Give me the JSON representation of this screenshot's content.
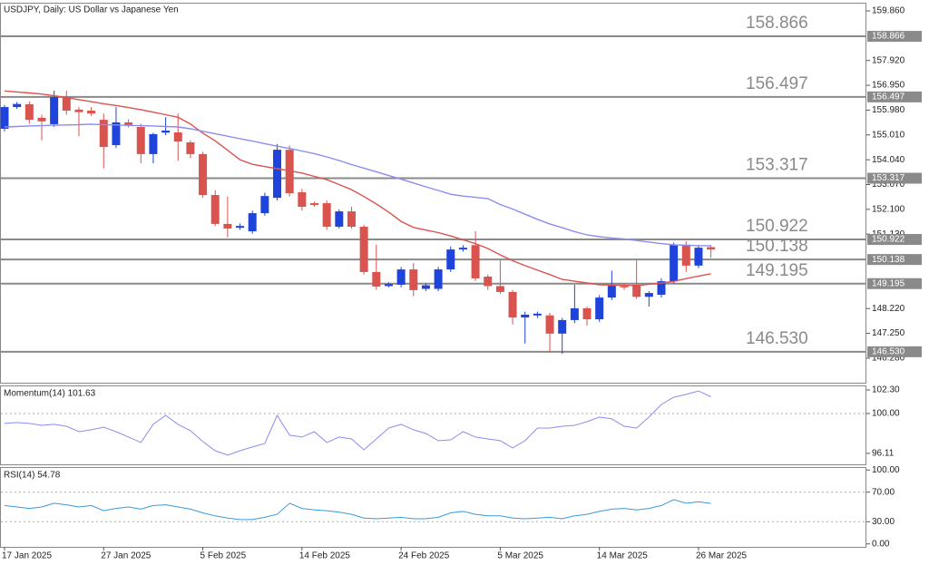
{
  "chart_data": {
    "type": "candlestick",
    "title": "USDJPY, Daily:  US Dollar vs Japanese Yen",
    "categories": [
      "17 Jan 2025",
      null,
      null,
      null,
      null,
      null,
      null,
      null,
      "27 Jan 2025",
      null,
      null,
      null,
      null,
      null,
      null,
      null,
      "5 Feb 2025",
      null,
      null,
      null,
      null,
      null,
      null,
      null,
      "14 Feb 2025",
      null,
      null,
      null,
      null,
      null,
      null,
      null,
      "24 Feb 2025",
      null,
      null,
      null,
      null,
      null,
      null,
      null,
      "5 Mar 2025",
      null,
      null,
      null,
      null,
      null,
      null,
      null,
      "14 Mar 2025",
      null,
      null,
      null,
      null,
      null,
      null,
      null,
      "26 Mar 2025",
      null
    ],
    "up_color": "#1f44dc",
    "down_color": "#d9534f",
    "candles": {
      "open": [
        155.25,
        156.1,
        156.21,
        155.68,
        155.43,
        156.49,
        156.0,
        155.96,
        155.6,
        154.61,
        155.5,
        155.32,
        154.26,
        155.1,
        155.11,
        154.72,
        154.26,
        152.66,
        151.53,
        151.38,
        151.24,
        151.95,
        152.55,
        154.43,
        152.77,
        152.34,
        152.34,
        151.42,
        152.02,
        151.42,
        149.65,
        149.1,
        149.15,
        149.75,
        148.99,
        148.99,
        149.75,
        150.53,
        150.7,
        149.47,
        149.1,
        148.87,
        147.87,
        147.95,
        147.95,
        147.24,
        147.77,
        148.23,
        147.8,
        148.65,
        149.1,
        149.15,
        148.68,
        148.76,
        149.29,
        150.71,
        149.9,
        150.62
      ],
      "high": [
        156.18,
        156.3,
        156.32,
        155.8,
        156.74,
        156.74,
        156.1,
        156.1,
        155.85,
        156.1,
        155.62,
        155.45,
        155.1,
        155.7,
        155.85,
        154.8,
        154.35,
        152.85,
        152.6,
        151.55,
        152.05,
        152.75,
        154.65,
        154.6,
        152.9,
        152.4,
        152.45,
        152.1,
        152.2,
        151.5,
        150.72,
        149.25,
        149.85,
        150.0,
        149.2,
        149.85,
        150.65,
        150.7,
        151.25,
        149.55,
        150.1,
        148.95,
        148.1,
        148.1,
        148.05,
        147.85,
        149.15,
        148.3,
        148.75,
        149.7,
        149.2,
        150.1,
        148.9,
        149.4,
        150.8,
        150.85,
        150.7,
        150.7
      ],
      "low": [
        155.15,
        156.02,
        155.45,
        154.8,
        155.32,
        155.8,
        154.96,
        155.75,
        153.7,
        154.5,
        155.3,
        153.9,
        153.9,
        155.0,
        154.0,
        154.1,
        152.55,
        151.45,
        151.0,
        151.3,
        151.15,
        151.85,
        152.45,
        152.6,
        152.05,
        152.2,
        151.3,
        151.35,
        151.35,
        149.55,
        148.95,
        149.05,
        149.05,
        148.7,
        148.9,
        148.9,
        149.65,
        150.45,
        149.3,
        148.95,
        148.8,
        147.6,
        146.85,
        147.85,
        146.5,
        146.45,
        147.65,
        147.55,
        147.7,
        148.55,
        148.95,
        148.6,
        148.3,
        148.65,
        149.2,
        149.65,
        149.8,
        150.2
      ],
      "close": [
        156.1,
        156.22,
        155.6,
        155.54,
        156.49,
        155.96,
        155.9,
        155.85,
        154.54,
        155.5,
        155.4,
        154.26,
        155.04,
        155.18,
        154.75,
        154.26,
        152.66,
        151.53,
        151.35,
        151.45,
        151.95,
        152.62,
        154.43,
        152.73,
        152.2,
        152.27,
        151.42,
        152.02,
        151.42,
        149.65,
        149.08,
        149.18,
        149.75,
        148.94,
        149.13,
        149.75,
        150.53,
        150.6,
        149.4,
        149.1,
        148.87,
        147.87,
        147.98,
        148.02,
        147.24,
        147.77,
        148.23,
        147.8,
        148.65,
        149.11,
        149.05,
        148.68,
        148.83,
        149.29,
        150.71,
        149.9,
        150.6,
        150.53
      ]
    },
    "lines": [
      {
        "color": "#d9534f",
        "values": [
          156.73,
          156.69,
          156.65,
          156.61,
          156.54,
          156.47,
          156.39,
          156.31,
          156.23,
          156.16,
          156.08,
          156.0,
          155.9,
          155.8,
          155.7,
          155.44,
          155.08,
          154.78,
          154.41,
          154.04,
          153.86,
          153.77,
          153.69,
          153.61,
          153.52,
          153.39,
          153.26,
          153.07,
          152.87,
          152.6,
          152.31,
          151.99,
          151.63,
          151.39,
          151.29,
          151.19,
          151.06,
          150.91,
          150.76,
          150.57,
          150.32,
          150.09,
          149.9,
          149.72,
          149.55,
          149.36,
          149.29,
          149.22,
          149.15,
          149.14,
          149.13,
          149.12,
          149.17,
          149.22,
          149.28,
          149.39,
          149.49,
          149.58
        ]
      },
      {
        "color": "#8c8cf0",
        "values": [
          155.32,
          155.34,
          155.36,
          155.37,
          155.39,
          155.4,
          155.41,
          155.43,
          155.41,
          155.4,
          155.38,
          155.37,
          155.36,
          155.34,
          155.32,
          155.25,
          155.15,
          155.06,
          154.96,
          154.86,
          154.77,
          154.67,
          154.57,
          154.48,
          154.38,
          154.28,
          154.15,
          154.01,
          153.85,
          153.71,
          153.57,
          153.42,
          153.28,
          153.13,
          152.98,
          152.84,
          152.69,
          152.62,
          152.57,
          152.52,
          152.29,
          152.11,
          151.91,
          151.71,
          151.53,
          151.38,
          151.23,
          151.1,
          151.03,
          150.98,
          150.94,
          150.88,
          150.82,
          150.76,
          150.71,
          150.7,
          150.68,
          150.68
        ]
      }
    ],
    "levels": [
      158.866,
      156.497,
      153.317,
      150.922,
      150.138,
      149.195,
      {
        "value": 146.53,
        "label": "146.530"
      }
    ],
    "level_color": "#8a8a8a",
    "ylim": [
      145.32,
      160.18
    ],
    "yticks": [
      {
        "value": 159.86,
        "label": "159.860"
      },
      {
        "value": 157.92,
        "label": "157.920"
      },
      {
        "value": 156.95,
        "label": "156.950"
      },
      {
        "value": 155.98,
        "label": "155.980"
      },
      {
        "value": 155.01,
        "label": "155.010"
      },
      {
        "value": 154.04,
        "label": "154.040"
      },
      {
        "value": 153.07,
        "label": "153.070"
      },
      {
        "value": 152.1,
        "label": "152.100"
      },
      {
        "value": 151.13,
        "label": "151.130"
      },
      {
        "value": 148.22,
        "label": "148.220"
      },
      {
        "value": 147.25,
        "label": "147.250"
      },
      {
        "value": 146.28,
        "label": "146.280"
      }
    ],
    "indicators": [
      {
        "type": "line",
        "title": "Momentum(14) 101.63",
        "color": "#8c8cf0",
        "values": [
          99.03,
          99.12,
          99.03,
          98.85,
          98.94,
          98.76,
          98.23,
          98.41,
          98.67,
          98.23,
          97.7,
          97.17,
          98.94,
          99.82,
          98.94,
          98.32,
          97.26,
          96.37,
          95.93,
          96.37,
          96.73,
          97.08,
          99.82,
          97.88,
          97.7,
          98.23,
          97.17,
          97.7,
          97.52,
          96.46,
          97.52,
          98.58,
          98.94,
          98.41,
          98.05,
          97.35,
          97.43,
          98.23,
          97.7,
          97.52,
          97.35,
          96.64,
          97.35,
          98.58,
          98.58,
          98.76,
          98.85,
          99.2,
          99.65,
          99.47,
          98.76,
          98.58,
          99.65,
          100.88,
          101.59,
          101.86,
          102.2,
          101.63
        ],
        "ylim": [
          95.04,
          102.74
        ],
        "yticks": [
          {
            "value": 102.3,
            "label": "102.30"
          },
          {
            "value": 100,
            "label": "100.00"
          },
          96.11
        ],
        "dashed_levels": [
          100
        ]
      },
      {
        "type": "line",
        "title": "RSI(14) 54.78",
        "color": "#3a9ad9",
        "values": [
          52,
          50,
          48,
          50,
          55,
          53,
          50,
          52,
          45,
          48,
          50,
          47,
          52,
          53,
          50,
          47,
          42,
          38,
          35,
          33,
          33,
          36,
          40,
          55,
          48,
          46,
          45,
          43,
          40,
          35,
          34,
          35,
          36,
          34,
          34,
          36,
          42,
          44,
          40,
          38,
          38,
          35,
          34,
          35,
          36,
          34,
          38,
          40,
          44,
          47,
          48,
          46,
          48,
          52,
          60,
          55,
          57,
          54.78
        ],
        "ylim": [
          -4,
          104
        ],
        "yticks": [
          {
            "value": 100,
            "label": "100.00"
          },
          {
            "value": 70,
            "label": "70.00"
          },
          {
            "value": 30,
            "label": "30.00"
          },
          {
            "value": 0,
            "label": "0.00"
          }
        ],
        "dashed_levels": [
          70,
          30
        ]
      }
    ]
  }
}
